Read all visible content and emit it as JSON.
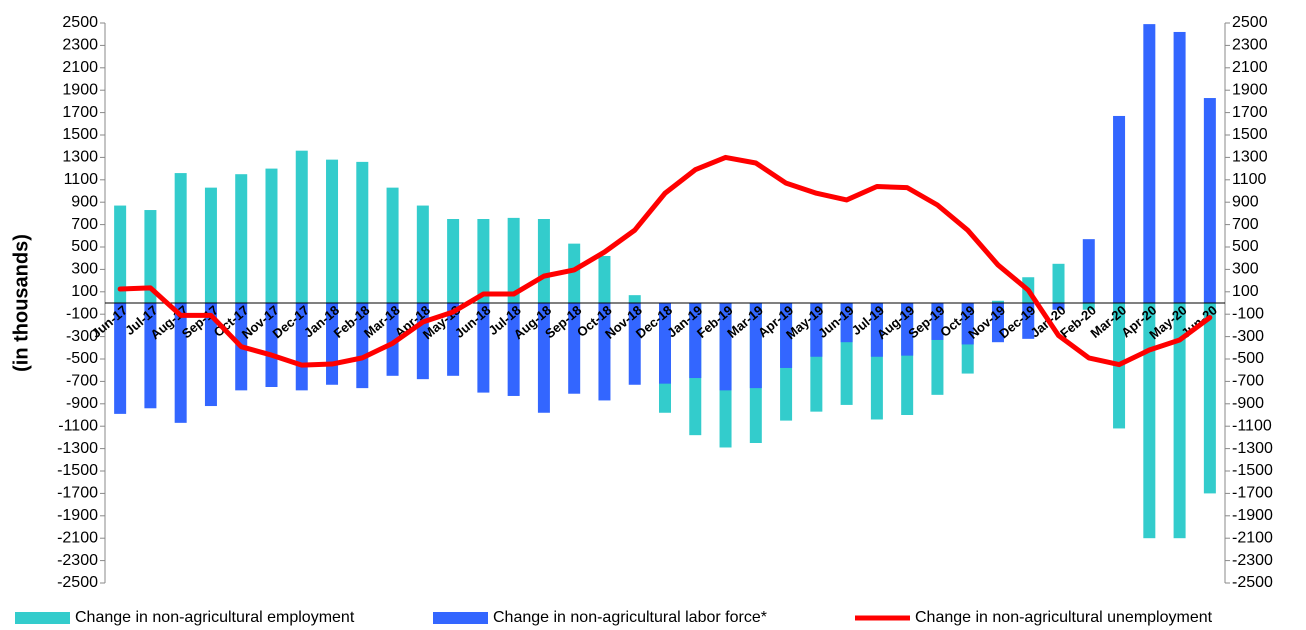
{
  "chart_data": {
    "type": "bar-line",
    "y_label": "(in thousands)",
    "categories": [
      "Jun-17",
      "Jul-17",
      "Aug-17",
      "Sep-17",
      "Oct-17",
      "Nov-17",
      "Dec-17",
      "Jan-18",
      "Feb-18",
      "Mar-18",
      "Apr-18",
      "May-18",
      "Jun-18",
      "Jul-18",
      "Aug-18",
      "Sep-18",
      "Oct-18",
      "Nov-18",
      "Dec-18",
      "Jan-19",
      "Feb-19",
      "Mar-19",
      "Apr-19",
      "May-19",
      "Jun-19",
      "Jul-19",
      "Aug-19",
      "Sep-19",
      "Oct-19",
      "Nov-19",
      "Dec-19",
      "Jan-20",
      "Feb-20",
      "Mar-20",
      "Apr-20",
      "May-20",
      "Jun-20"
    ],
    "series": [
      {
        "name": "Change in non-agricultural employment",
        "color": "#33cccc",
        "kind": "bar",
        "values": [
          870,
          830,
          1160,
          1030,
          1150,
          1200,
          1360,
          1280,
          1260,
          1030,
          870,
          750,
          750,
          760,
          750,
          530,
          420,
          70,
          -980,
          -1180,
          -1290,
          -1250,
          -1050,
          -970,
          -910,
          -1040,
          -1000,
          -820,
          -630,
          20,
          230,
          350,
          -60,
          -1120,
          -2100,
          -2100,
          -1700
        ]
      },
      {
        "name": "Change in non-agricultural labor force*",
        "color": "#3366ff",
        "kind": "bar",
        "values": [
          -990,
          -940,
          -1070,
          -920,
          -780,
          -750,
          -780,
          -730,
          -760,
          -650,
          -680,
          -650,
          -800,
          -830,
          -980,
          -810,
          -870,
          -730,
          -720,
          -670,
          -780,
          -760,
          -580,
          -480,
          -350,
          -480,
          -470,
          -330,
          -370,
          -350,
          -320,
          -60,
          570,
          1670,
          2490,
          2420,
          1830
        ]
      },
      {
        "name": "Change in non-agricultural unemployment",
        "color": "#ff0000",
        "kind": "line",
        "values": [
          125,
          135,
          -110,
          -110,
          -390,
          -465,
          -555,
          -545,
          -490,
          -360,
          -170,
          -80,
          80,
          80,
          240,
          295,
          455,
          650,
          980,
          1190,
          1300,
          1250,
          1070,
          980,
          920,
          1040,
          1030,
          875,
          650,
          340,
          115,
          -290,
          -490,
          -550,
          -420,
          -330,
          -130
        ]
      }
    ],
    "ylim": [
      -2500,
      2500
    ],
    "yticks": [
      -2500,
      -2300,
      -2100,
      -1900,
      -1700,
      -1500,
      -1300,
      -1100,
      -900,
      -700,
      -500,
      -300,
      -100,
      100,
      300,
      500,
      700,
      900,
      1100,
      1300,
      1500,
      1700,
      1900,
      2100,
      2300,
      2500
    ],
    "y2lim": [
      -2500,
      2500
    ],
    "y2ticks": [
      -2500,
      -2300,
      -2100,
      -1900,
      -1700,
      -1500,
      -1300,
      -1100,
      -900,
      -700,
      -500,
      -300,
      -100,
      100,
      300,
      500,
      700,
      900,
      1100,
      1300,
      1500,
      1700,
      1900,
      2100,
      2300,
      2500
    ],
    "legend": "bottom"
  }
}
